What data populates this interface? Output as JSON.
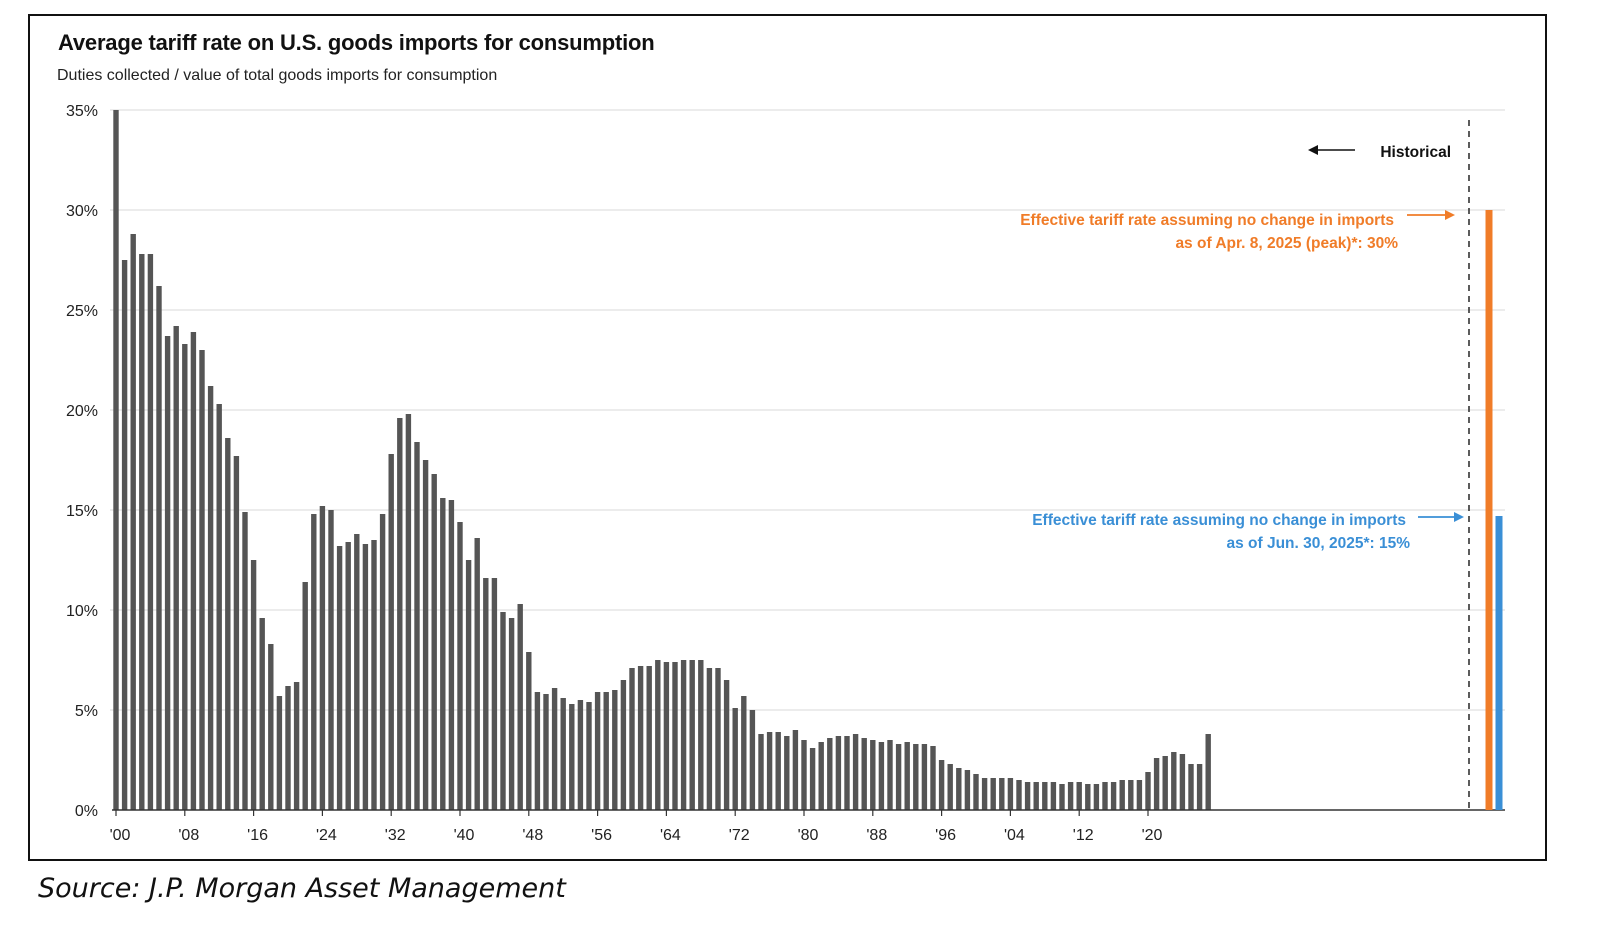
{
  "chart_data": {
    "type": "bar",
    "title": "Average tariff rate on U.S. goods imports for consumption",
    "subtitle": "Duties collected / value of total goods imports for consumption",
    "source": "Source:  J.P. Morgan Asset Management",
    "ylabel": "",
    "xlabel": "",
    "ylim": [
      0,
      35
    ],
    "y_ticks": [
      "0%",
      "5%",
      "10%",
      "15%",
      "20%",
      "25%",
      "30%",
      "35%"
    ],
    "grid": true,
    "x_start_year": 1900,
    "x_tick_labels": [
      "'00",
      "'08",
      "'16",
      "'24",
      "'32",
      "'40",
      "'48",
      "'56",
      "'64",
      "'72",
      "'80",
      "'88",
      "'96",
      "'04",
      "'12",
      "'20"
    ],
    "values": [
      35.0,
      27.5,
      28.8,
      27.8,
      27.8,
      26.2,
      23.7,
      24.2,
      23.3,
      23.9,
      23.0,
      21.2,
      20.3,
      18.6,
      17.7,
      14.9,
      12.5,
      9.6,
      8.3,
      5.7,
      6.2,
      6.4,
      11.4,
      14.8,
      15.2,
      15.0,
      13.2,
      13.4,
      13.8,
      13.3,
      13.5,
      14.8,
      17.8,
      19.6,
      19.8,
      18.4,
      17.5,
      16.8,
      15.6,
      15.5,
      14.4,
      12.5,
      13.6,
      11.6,
      11.6,
      9.9,
      9.6,
      10.3,
      7.9,
      5.9,
      5.8,
      6.1,
      5.6,
      5.3,
      5.5,
      5.4,
      5.9,
      5.9,
      6.0,
      6.5,
      7.1,
      7.2,
      7.2,
      7.5,
      7.4,
      7.4,
      7.5,
      7.5,
      7.5,
      7.1,
      7.1,
      6.5,
      5.1,
      5.7,
      5.0,
      3.8,
      3.9,
      3.9,
      3.7,
      4.0,
      3.5,
      3.1,
      3.4,
      3.6,
      3.7,
      3.7,
      3.8,
      3.6,
      3.5,
      3.4,
      3.5,
      3.3,
      3.4,
      3.3,
      3.3,
      3.2,
      2.5,
      2.3,
      2.1,
      2.0,
      1.8,
      1.6,
      1.6,
      1.6,
      1.6,
      1.5,
      1.4,
      1.4,
      1.4,
      1.4,
      1.3,
      1.4,
      1.4,
      1.3,
      1.3,
      1.4,
      1.4,
      1.5,
      1.5,
      1.5,
      1.9,
      2.6,
      2.7,
      2.9,
      2.8,
      2.3,
      2.3,
      3.8
    ],
    "projections": [
      {
        "name": "Effective tariff rate assuming no change in imports as of Apr. 8, 2025 (peak)*: 30%",
        "value": 30,
        "color": "#f07c28"
      },
      {
        "name": "Effective tariff rate assuming no change in imports as of Jun. 30, 2025*: 15%",
        "value": 14.7,
        "color": "#3a8fd6"
      }
    ],
    "colors": {
      "historical": "#555555",
      "peak": "#f07c28",
      "current": "#3a8fd6",
      "grid": "#e6e6e6"
    },
    "annotations": {
      "historical": "Historical",
      "peak_line1": "Effective tariff rate assuming no change in imports",
      "peak_line2": "as of Apr. 8, 2025 (peak)*: 30%",
      "current_line1": "Effective tariff rate assuming no change in imports",
      "current_line2": "as of Jun. 30, 2025*: 15%"
    }
  }
}
